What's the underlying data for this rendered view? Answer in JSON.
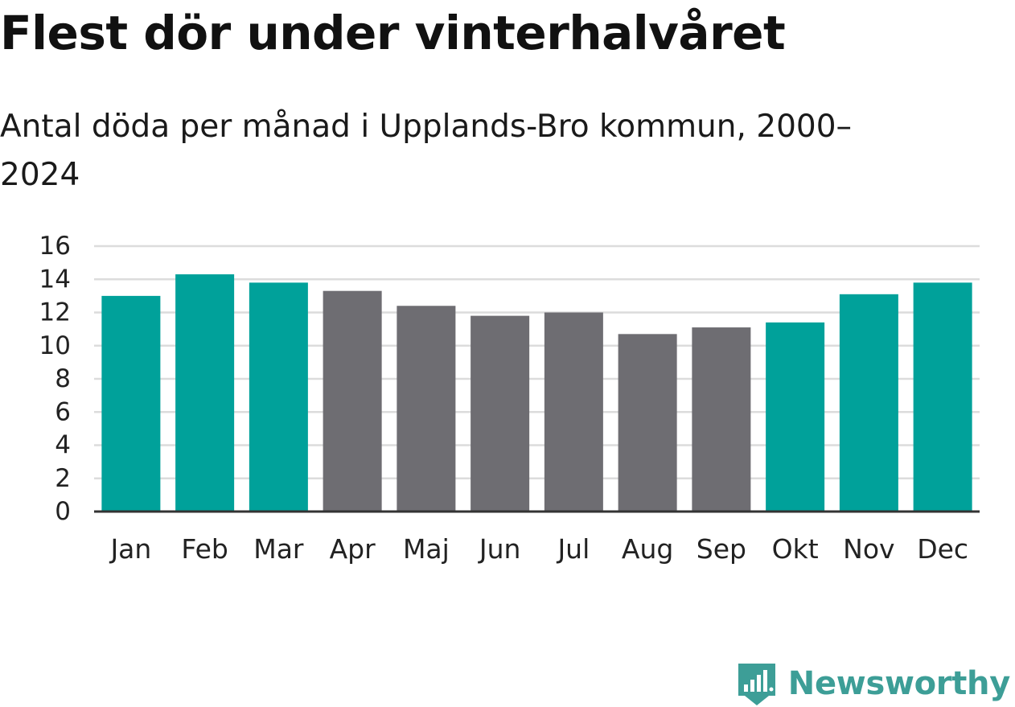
{
  "title": "Flest dör under vinterhalvåret",
  "subtitle": "Antal döda per månad i Upplands-Bro kommun, 2000–2024",
  "brand": {
    "name": "Newsworthy",
    "icon": "newsworthy-logo-icon",
    "color": "#3d9e97"
  },
  "colors": {
    "winter": "#00a19a",
    "summer": "#6e6d72",
    "grid": "#dcdcdc",
    "axis": "#333333",
    "tick_text": "#222222"
  },
  "chart_data": {
    "type": "bar",
    "title": "Flest dör under vinterhalvåret",
    "subtitle": "Antal döda per månad i Upplands-Bro kommun, 2000–2024",
    "xlabel": "",
    "ylabel": "",
    "ylim": [
      0,
      16
    ],
    "yticks": [
      0,
      2,
      4,
      6,
      8,
      10,
      12,
      14,
      16
    ],
    "grid": true,
    "legend": "none",
    "categories": [
      "Jan",
      "Feb",
      "Mar",
      "Apr",
      "Maj",
      "Jun",
      "Jul",
      "Aug",
      "Sep",
      "Okt",
      "Nov",
      "Dec"
    ],
    "values": [
      13.0,
      14.3,
      13.8,
      13.3,
      12.4,
      11.8,
      12.0,
      10.7,
      11.1,
      11.4,
      13.1,
      13.8
    ],
    "highlight": [
      true,
      true,
      true,
      false,
      false,
      false,
      false,
      false,
      false,
      true,
      true,
      true
    ]
  }
}
